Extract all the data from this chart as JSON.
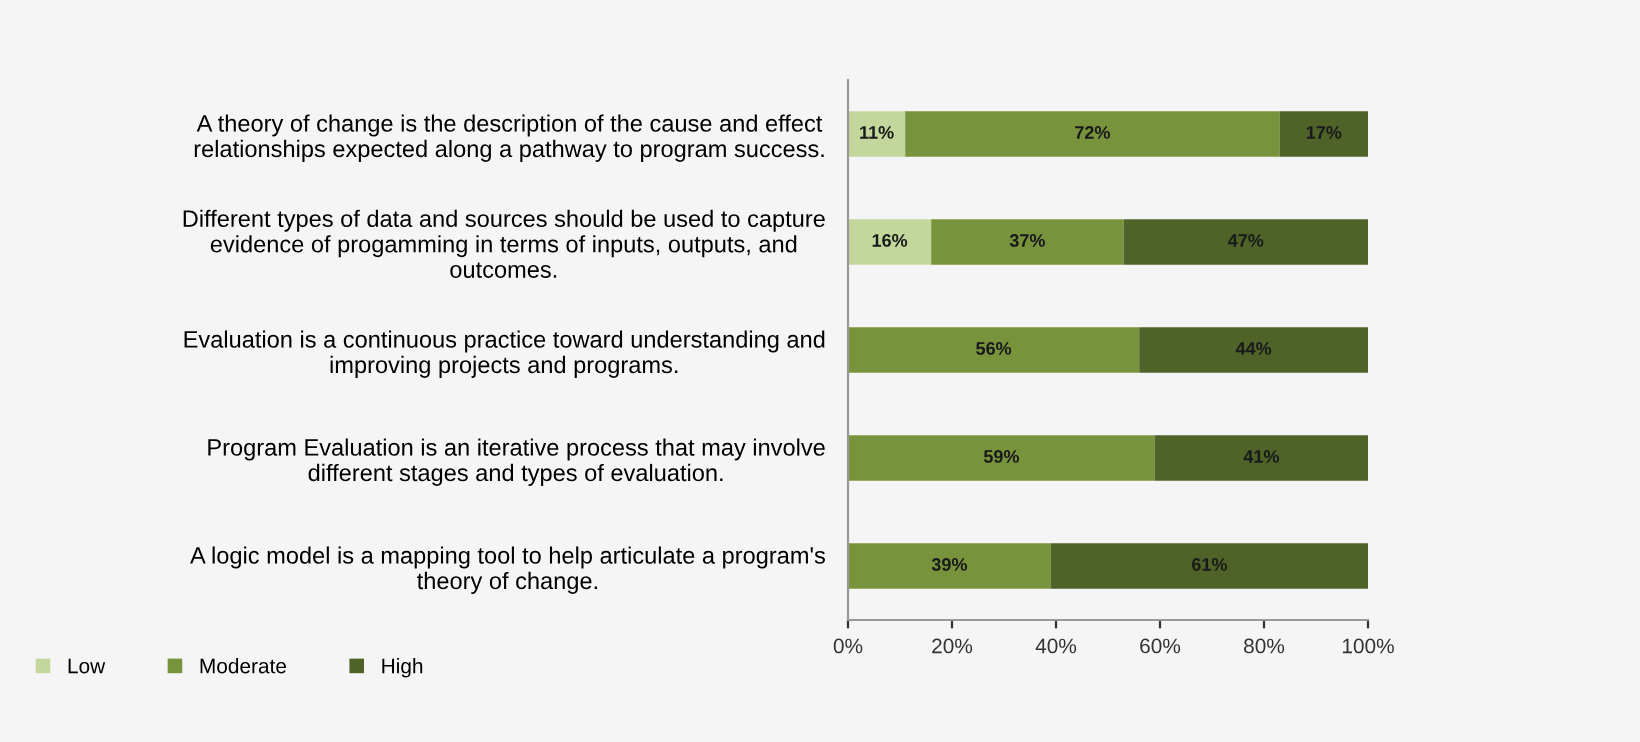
{
  "chart_data": {
    "type": "bar",
    "orientation": "horizontal",
    "stacked": true,
    "categories": [
      "A theory of change is the description of the cause and effect\nrelationships expected along a pathway to program success.",
      "Different types of data and sources should be used to capture\nevidence of progamming in terms of inputs, outputs, and\noutcomes.",
      "Evaluation is a continuous practice toward understanding and\nimproving projects and programs.",
      "Program Evaluation is an iterative process that may involve\ndifferent stages and types of evaluation.",
      "A logic model is a mapping tool to help articulate a program's\ntheory of change."
    ],
    "series": [
      {
        "name": "Low",
        "color": "#c3d69b",
        "values": [
          11,
          16,
          null,
          null,
          null
        ],
        "value_labels": [
          "11%",
          "16%",
          null,
          null,
          null
        ]
      },
      {
        "name": "Moderate",
        "color": "#77933c",
        "values": [
          72,
          37,
          56,
          59,
          39
        ],
        "value_labels": [
          "72%",
          "37%",
          "56%",
          "59%",
          "39%"
        ]
      },
      {
        "name": "High",
        "color": "#4f6228",
        "values": [
          17,
          47,
          44,
          41,
          61
        ],
        "value_labels": [
          "17%",
          "47%",
          "44%",
          "41%",
          "61%"
        ]
      }
    ],
    "xlim": [
      0,
      100
    ],
    "xticks": [
      {
        "value": 0,
        "label": "0%"
      },
      {
        "value": 20,
        "label": "20%"
      },
      {
        "value": 40,
        "label": "40%"
      },
      {
        "value": 60,
        "label": "60%"
      },
      {
        "value": 80,
        "label": "80%"
      },
      {
        "value": 100,
        "label": "100%"
      }
    ],
    "legend": "bottom left",
    "grid": false
  }
}
